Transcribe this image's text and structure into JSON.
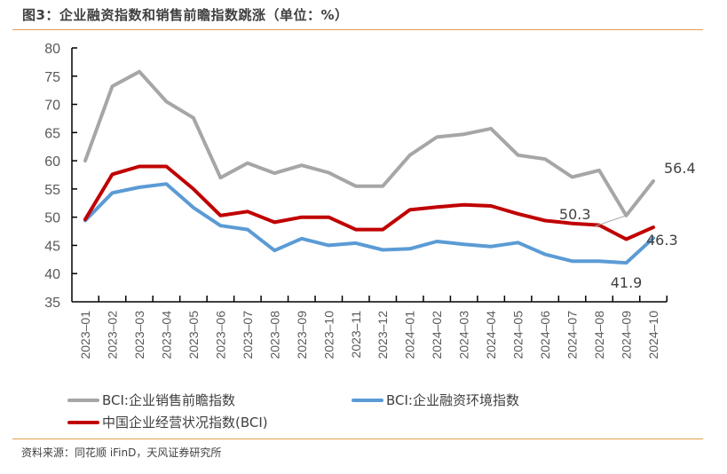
{
  "title": "图3：企业融资指数和销售前瞻指数跳涨（单位：%）",
  "source": "资料来源：同花顺 iFinD，天风证券研究所",
  "chart_data": {
    "type": "line",
    "title": "图3：企业融资指数和销售前瞻指数跳涨（单位：%）",
    "xlabel": "",
    "ylabel": "",
    "ylim": [
      35,
      80
    ],
    "yticks": [
      "35",
      "40",
      "45",
      "50",
      "55",
      "60",
      "65",
      "70",
      "75",
      "80"
    ],
    "grid": false,
    "legend_position": "bottom",
    "categories": [
      "2023-01",
      "2023-02",
      "2023-03",
      "2023-04",
      "2023-05",
      "2023-06",
      "2023-07",
      "2023-08",
      "2023-09",
      "2023-10",
      "2023-11",
      "2023-12",
      "2024-01",
      "2024-02",
      "2024-03",
      "2024-04",
      "2024-05",
      "2024-06",
      "2024-07",
      "2024-08",
      "2024-09",
      "2024-10"
    ],
    "series": [
      {
        "name": "BCI:企业销售前瞻指数",
        "color": "#a6a6a6",
        "values": [
          60.0,
          73.2,
          75.8,
          70.5,
          67.6,
          57.0,
          59.6,
          57.8,
          59.2,
          57.9,
          55.5,
          55.5,
          61.0,
          64.2,
          64.7,
          65.7,
          61.0,
          60.3,
          57.1,
          58.3,
          50.3,
          56.4
        ]
      },
      {
        "name": "BCI:企业融资环境指数",
        "color": "#5b9bd5",
        "values": [
          49.4,
          54.3,
          55.3,
          55.9,
          51.7,
          48.5,
          47.8,
          44.1,
          46.2,
          45.0,
          45.4,
          44.2,
          44.4,
          45.7,
          45.2,
          44.8,
          45.5,
          43.4,
          42.2,
          42.2,
          41.9,
          46.3
        ]
      },
      {
        "name": "中国企业经营状况指数(BCI)",
        "color": "#c00000",
        "values": [
          49.6,
          57.6,
          59.0,
          59.0,
          55.0,
          50.3,
          51.0,
          49.1,
          50.0,
          50.0,
          47.8,
          47.8,
          51.3,
          51.8,
          52.2,
          52.0,
          50.6,
          49.4,
          48.9,
          48.6,
          46.1,
          48.2
        ]
      }
    ],
    "annotations": [
      {
        "text": "56.4",
        "series": "BCI:企业销售前瞻指数",
        "category": "2024-10"
      },
      {
        "text": "50.3",
        "series": "BCI:企业销售前瞻指数",
        "category": "2024-09"
      },
      {
        "text": "46.3",
        "series": "BCI:企业融资环境指数",
        "category": "2024-10"
      },
      {
        "text": "41.9",
        "series": "BCI:企业融资环境指数",
        "category": "2024-09"
      }
    ]
  }
}
